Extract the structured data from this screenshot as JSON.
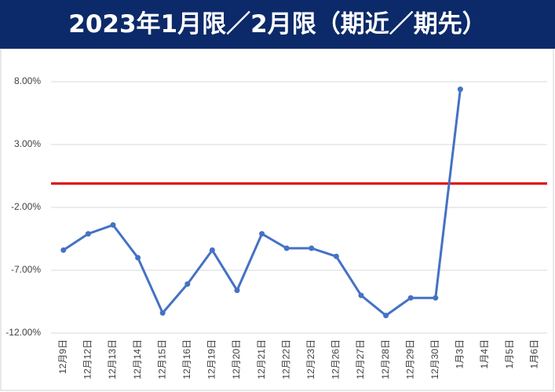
{
  "chart_data": {
    "type": "line",
    "title": "2023年1月限／2月限（期近／期先）",
    "categories": [
      "12月9日",
      "12月12日",
      "12月13日",
      "12月14日",
      "12月15日",
      "12月16日",
      "12月19日",
      "12月20日",
      "12月21日",
      "12月22日",
      "12月23日",
      "12月26日",
      "12月27日",
      "12月28日",
      "12月29日",
      "12月30日",
      "1月3日",
      "1月4日",
      "1月5日",
      "1月6日"
    ],
    "series": [
      {
        "color": "#4472c4",
        "values": [
          -5.4,
          -4.1,
          -3.4,
          -6.0,
          -10.4,
          -8.1,
          -5.4,
          -8.6,
          -4.1,
          -5.25,
          -5.25,
          -5.9,
          -9.0,
          -10.6,
          -9.2,
          -9.2,
          7.4,
          null,
          null,
          null
        ]
      }
    ],
    "reference_line": {
      "value": -0.1,
      "color": "#e00000"
    },
    "ylim": [
      -12,
      8
    ],
    "yticks": [
      {
        "value": -12,
        "label": "-12.00%"
      },
      {
        "value": -7,
        "label": "-7.00%"
      },
      {
        "value": -2,
        "label": "-2.00%"
      },
      {
        "value": 3,
        "label": "3.00%"
      },
      {
        "value": 8,
        "label": "8.00%"
      }
    ],
    "grid": true
  }
}
